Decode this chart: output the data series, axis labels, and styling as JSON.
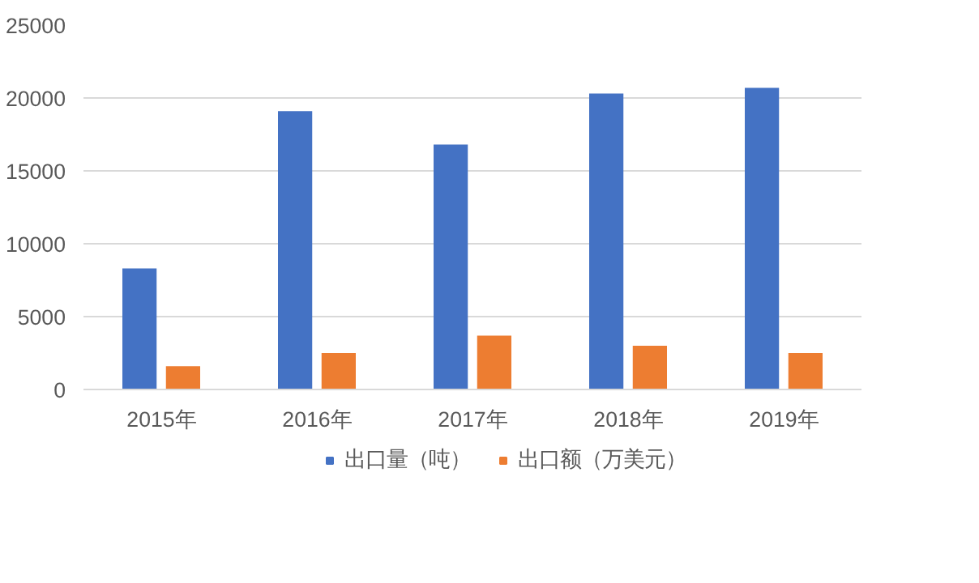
{
  "chart_data": {
    "type": "bar",
    "categories": [
      "2015年",
      "2016年",
      "2017年",
      "2018年",
      "2019年"
    ],
    "series": [
      {
        "name": "出口量（吨）",
        "color": "#4472c4",
        "values": [
          8300,
          19100,
          16800,
          20300,
          20700
        ]
      },
      {
        "name": "出口额（万美元）",
        "color": "#ed7d31",
        "values": [
          1600,
          2500,
          3700,
          3000,
          2500
        ]
      }
    ],
    "ylim": [
      0,
      25000
    ],
    "yticks": [
      0,
      5000,
      10000,
      15000,
      20000,
      25000
    ],
    "grid": "y",
    "legend": "bottom"
  }
}
